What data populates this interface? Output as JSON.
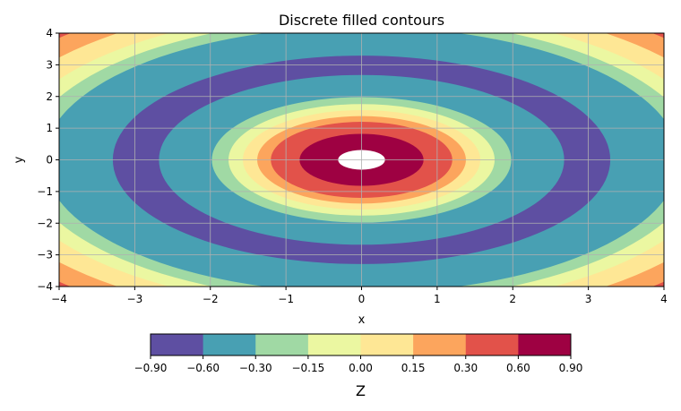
{
  "chart_data": {
    "type": "contourf",
    "title": "Discrete filled contours",
    "xlabel": "x",
    "ylabel": "y",
    "xlim": [
      -4,
      4
    ],
    "ylim": [
      -4,
      4
    ],
    "xticks": [
      "−4",
      "−3",
      "−2",
      "−1",
      "0",
      "1",
      "2",
      "3",
      "4"
    ],
    "yticks": [
      "−4",
      "−3",
      "−2",
      "−1",
      "0",
      "1",
      "2",
      "3",
      "4"
    ],
    "grid": true,
    "colormap": "Spectral_r",
    "levels": [
      -0.9,
      -0.6,
      -0.3,
      -0.15,
      0.0,
      0.15,
      0.3,
      0.6,
      0.9
    ],
    "level_labels": [
      "−0.90",
      "−0.60",
      "−0.30",
      "−0.15",
      "0.00",
      "0.15",
      "0.30",
      "0.60",
      "0.90"
    ],
    "level_colors": [
      "#5e4fa2",
      "#48a0b3",
      "#a0d9a4",
      "#ebf7a1",
      "#fee795",
      "#fca55d",
      "#e2524a",
      "#9e0142"
    ],
    "above_max_color": "#ffffff",
    "colorbar_label": "Z",
    "colorbar_placement": "bottom",
    "radial_bands": [
      {
        "band": 6,
        "r_min": 5.55,
        "r_max": 6.0
      },
      {
        "band": 5,
        "r_min": 5.14,
        "r_max": 5.55
      },
      {
        "band": 4,
        "r_min": 4.74,
        "r_max": 5.14
      },
      {
        "band": 3,
        "r_min": 4.46,
        "r_max": 4.74
      },
      {
        "band": 2,
        "r_min": 4.2,
        "r_max": 4.46
      },
      {
        "band": 1,
        "r_min": 3.29,
        "r_max": 4.2
      },
      {
        "band": 0,
        "r_min": 2.68,
        "r_max": 3.29
      },
      {
        "band": 1,
        "r_min": 1.98,
        "r_max": 2.68
      },
      {
        "band": 2,
        "r_min": 1.76,
        "r_max": 1.98
      },
      {
        "band": 3,
        "r_min": 1.57,
        "r_max": 1.76
      },
      {
        "band": 4,
        "r_min": 1.38,
        "r_max": 1.57
      },
      {
        "band": 5,
        "r_min": 1.2,
        "r_max": 1.38
      },
      {
        "band": 6,
        "r_min": 0.82,
        "r_max": 1.2
      },
      {
        "band": 7,
        "r_min": 0.31,
        "r_max": 0.82
      },
      {
        "band": -1,
        "r_min": 0.0,
        "r_max": 0.31
      }
    ]
  }
}
